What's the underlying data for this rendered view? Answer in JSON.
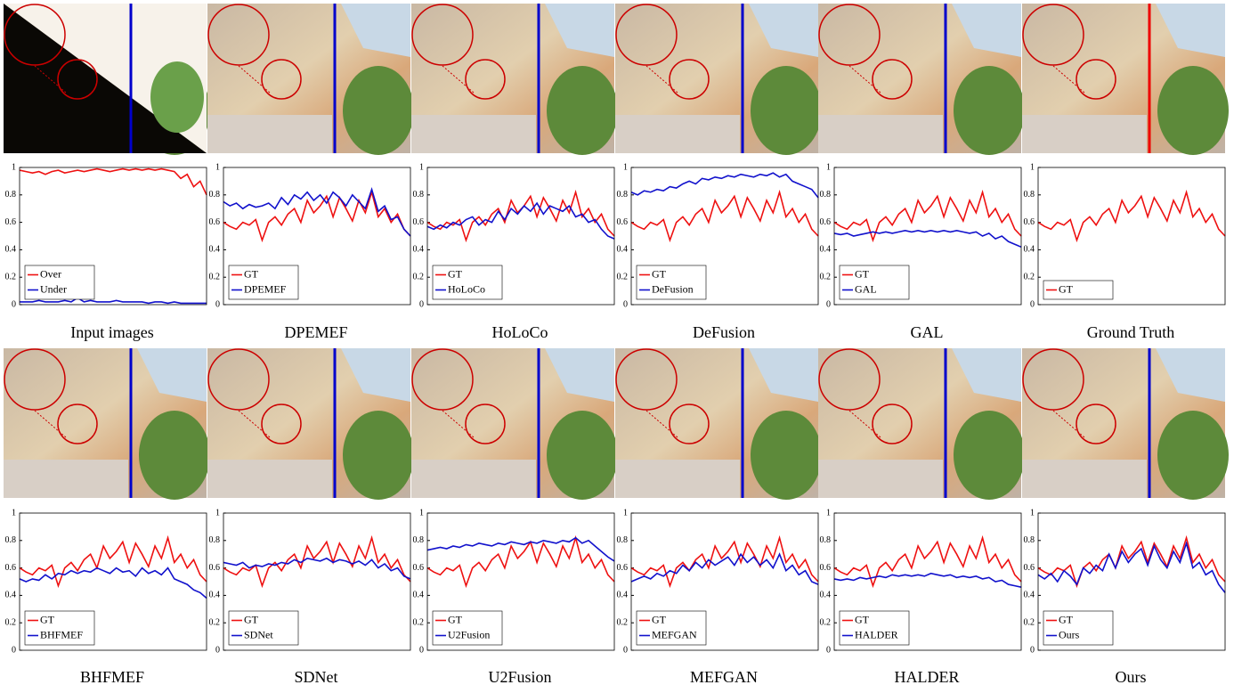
{
  "chart_data": [
    {
      "type": "line",
      "title": "Input images",
      "ylim": [
        0,
        1
      ],
      "yticks": [
        0,
        0.2,
        0.4,
        0.6,
        0.8,
        1
      ],
      "legend": "lower left",
      "series": [
        {
          "name": "Over",
          "color": "#ee1111",
          "values": [
            0.98,
            0.97,
            0.96,
            0.97,
            0.95,
            0.97,
            0.98,
            0.96,
            0.97,
            0.98,
            0.97,
            0.98,
            0.99,
            0.98,
            0.97,
            0.98,
            0.99,
            0.98,
            0.99,
            0.98,
            0.99,
            0.98,
            0.99,
            0.98,
            0.97,
            0.92,
            0.95,
            0.86,
            0.9,
            0.8
          ]
        },
        {
          "name": "Under",
          "color": "#1111cc",
          "values": [
            0.02,
            0.02,
            0.02,
            0.03,
            0.02,
            0.02,
            0.02,
            0.03,
            0.02,
            0.05,
            0.02,
            0.03,
            0.02,
            0.02,
            0.02,
            0.03,
            0.02,
            0.02,
            0.02,
            0.02,
            0.01,
            0.02,
            0.02,
            0.01,
            0.02,
            0.01,
            0.01,
            0.01,
            0.01,
            0.01
          ]
        }
      ]
    },
    {
      "type": "line",
      "title": "DPEMEF",
      "ylim": [
        0,
        1
      ],
      "yticks": [
        0,
        0.2,
        0.4,
        0.6,
        0.8,
        1
      ],
      "legend": "lower left",
      "series": [
        {
          "name": "GT",
          "color": "#ee1111",
          "values": [
            0.6,
            0.57,
            0.55,
            0.6,
            0.58,
            0.62,
            0.47,
            0.6,
            0.64,
            0.58,
            0.66,
            0.7,
            0.6,
            0.76,
            0.67,
            0.72,
            0.79,
            0.64,
            0.78,
            0.7,
            0.61,
            0.76,
            0.67,
            0.82,
            0.64,
            0.7,
            0.6,
            0.66,
            0.55,
            0.5
          ]
        },
        {
          "name": "DPEMEF",
          "color": "#1111cc",
          "values": [
            0.75,
            0.72,
            0.74,
            0.7,
            0.73,
            0.71,
            0.72,
            0.74,
            0.7,
            0.78,
            0.73,
            0.8,
            0.77,
            0.82,
            0.76,
            0.8,
            0.74,
            0.82,
            0.78,
            0.72,
            0.8,
            0.75,
            0.7,
            0.84,
            0.68,
            0.72,
            0.62,
            0.64,
            0.55,
            0.5
          ]
        }
      ]
    },
    {
      "type": "line",
      "title": "HoLoCo",
      "ylim": [
        0,
        1
      ],
      "yticks": [
        0,
        0.2,
        0.4,
        0.6,
        0.8,
        1
      ],
      "legend": "lower left",
      "series": [
        {
          "name": "GT",
          "color": "#ee1111",
          "values": [
            0.6,
            0.57,
            0.55,
            0.6,
            0.58,
            0.62,
            0.47,
            0.6,
            0.64,
            0.58,
            0.66,
            0.7,
            0.6,
            0.76,
            0.67,
            0.72,
            0.79,
            0.64,
            0.78,
            0.7,
            0.61,
            0.76,
            0.67,
            0.82,
            0.64,
            0.7,
            0.6,
            0.66,
            0.55,
            0.5
          ]
        },
        {
          "name": "HoLoCo",
          "color": "#1111cc",
          "values": [
            0.57,
            0.55,
            0.58,
            0.56,
            0.6,
            0.58,
            0.62,
            0.64,
            0.58,
            0.62,
            0.6,
            0.68,
            0.62,
            0.7,
            0.66,
            0.72,
            0.68,
            0.74,
            0.66,
            0.72,
            0.7,
            0.68,
            0.72,
            0.64,
            0.66,
            0.6,
            0.62,
            0.55,
            0.5,
            0.48
          ]
        }
      ]
    },
    {
      "type": "line",
      "title": "DeFusion",
      "ylim": [
        0,
        1
      ],
      "yticks": [
        0,
        0.2,
        0.4,
        0.6,
        0.8,
        1
      ],
      "legend": "lower left",
      "series": [
        {
          "name": "GT",
          "color": "#ee1111",
          "values": [
            0.6,
            0.57,
            0.55,
            0.6,
            0.58,
            0.62,
            0.47,
            0.6,
            0.64,
            0.58,
            0.66,
            0.7,
            0.6,
            0.76,
            0.67,
            0.72,
            0.79,
            0.64,
            0.78,
            0.7,
            0.61,
            0.76,
            0.67,
            0.82,
            0.64,
            0.7,
            0.6,
            0.66,
            0.55,
            0.5
          ]
        },
        {
          "name": "DeFusion",
          "color": "#1111cc",
          "values": [
            0.82,
            0.8,
            0.83,
            0.82,
            0.84,
            0.83,
            0.86,
            0.85,
            0.88,
            0.9,
            0.88,
            0.92,
            0.91,
            0.93,
            0.92,
            0.94,
            0.93,
            0.95,
            0.94,
            0.93,
            0.95,
            0.94,
            0.96,
            0.93,
            0.95,
            0.9,
            0.88,
            0.86,
            0.84,
            0.78
          ]
        }
      ]
    },
    {
      "type": "line",
      "title": "GAL",
      "ylim": [
        0,
        1
      ],
      "yticks": [
        0,
        0.2,
        0.4,
        0.6,
        0.8,
        1
      ],
      "legend": "lower left",
      "series": [
        {
          "name": "GT",
          "color": "#ee1111",
          "values": [
            0.6,
            0.57,
            0.55,
            0.6,
            0.58,
            0.62,
            0.47,
            0.6,
            0.64,
            0.58,
            0.66,
            0.7,
            0.6,
            0.76,
            0.67,
            0.72,
            0.79,
            0.64,
            0.78,
            0.7,
            0.61,
            0.76,
            0.67,
            0.82,
            0.64,
            0.7,
            0.6,
            0.66,
            0.55,
            0.5
          ]
        },
        {
          "name": "GAL",
          "color": "#1111cc",
          "values": [
            0.52,
            0.51,
            0.52,
            0.5,
            0.51,
            0.52,
            0.53,
            0.52,
            0.53,
            0.52,
            0.53,
            0.54,
            0.53,
            0.54,
            0.53,
            0.54,
            0.53,
            0.54,
            0.53,
            0.54,
            0.53,
            0.52,
            0.53,
            0.5,
            0.52,
            0.48,
            0.5,
            0.46,
            0.44,
            0.42
          ]
        }
      ]
    },
    {
      "type": "line",
      "title": "Ground Truth",
      "ylim": [
        0,
        1
      ],
      "yticks": [
        0,
        0.2,
        0.4,
        0.6,
        0.8,
        1
      ],
      "legend": "lower left",
      "series": [
        {
          "name": "GT",
          "color": "#ee1111",
          "values": [
            0.6,
            0.57,
            0.55,
            0.6,
            0.58,
            0.62,
            0.47,
            0.6,
            0.64,
            0.58,
            0.66,
            0.7,
            0.6,
            0.76,
            0.67,
            0.72,
            0.79,
            0.64,
            0.78,
            0.7,
            0.61,
            0.76,
            0.67,
            0.82,
            0.64,
            0.7,
            0.6,
            0.66,
            0.55,
            0.5
          ]
        }
      ]
    },
    {
      "type": "line",
      "title": "BHFMEF",
      "ylim": [
        0,
        1
      ],
      "yticks": [
        0,
        0.2,
        0.4,
        0.6,
        0.8,
        1
      ],
      "legend": "lower left",
      "series": [
        {
          "name": "GT",
          "color": "#ee1111",
          "values": [
            0.6,
            0.57,
            0.55,
            0.6,
            0.58,
            0.62,
            0.47,
            0.6,
            0.64,
            0.58,
            0.66,
            0.7,
            0.6,
            0.76,
            0.67,
            0.72,
            0.79,
            0.64,
            0.78,
            0.7,
            0.61,
            0.76,
            0.67,
            0.82,
            0.64,
            0.7,
            0.6,
            0.66,
            0.55,
            0.5
          ]
        },
        {
          "name": "BHFMEF",
          "color": "#1111cc",
          "values": [
            0.52,
            0.5,
            0.52,
            0.51,
            0.55,
            0.52,
            0.56,
            0.55,
            0.58,
            0.56,
            0.58,
            0.57,
            0.6,
            0.58,
            0.56,
            0.6,
            0.57,
            0.58,
            0.54,
            0.6,
            0.56,
            0.58,
            0.55,
            0.6,
            0.52,
            0.5,
            0.48,
            0.44,
            0.42,
            0.38
          ]
        }
      ]
    },
    {
      "type": "line",
      "title": "SDNet",
      "ylim": [
        0,
        1
      ],
      "yticks": [
        0,
        0.2,
        0.4,
        0.6,
        0.8,
        1
      ],
      "legend": "lower left",
      "series": [
        {
          "name": "GT",
          "color": "#ee1111",
          "values": [
            0.6,
            0.57,
            0.55,
            0.6,
            0.58,
            0.62,
            0.47,
            0.6,
            0.64,
            0.58,
            0.66,
            0.7,
            0.6,
            0.76,
            0.67,
            0.72,
            0.79,
            0.64,
            0.78,
            0.7,
            0.61,
            0.76,
            0.67,
            0.82,
            0.64,
            0.7,
            0.6,
            0.66,
            0.55,
            0.5
          ]
        },
        {
          "name": "SDNet",
          "color": "#1111cc",
          "values": [
            0.64,
            0.63,
            0.62,
            0.64,
            0.6,
            0.62,
            0.61,
            0.63,
            0.62,
            0.64,
            0.63,
            0.66,
            0.64,
            0.67,
            0.66,
            0.65,
            0.67,
            0.64,
            0.66,
            0.65,
            0.63,
            0.65,
            0.62,
            0.66,
            0.6,
            0.63,
            0.58,
            0.6,
            0.54,
            0.52
          ]
        }
      ]
    },
    {
      "type": "line",
      "title": "U2Fusion",
      "ylim": [
        0,
        1
      ],
      "yticks": [
        0,
        0.2,
        0.4,
        0.6,
        0.8,
        1
      ],
      "legend": "lower left",
      "series": [
        {
          "name": "GT",
          "color": "#ee1111",
          "values": [
            0.6,
            0.57,
            0.55,
            0.6,
            0.58,
            0.62,
            0.47,
            0.6,
            0.64,
            0.58,
            0.66,
            0.7,
            0.6,
            0.76,
            0.67,
            0.72,
            0.79,
            0.64,
            0.78,
            0.7,
            0.61,
            0.76,
            0.67,
            0.82,
            0.64,
            0.7,
            0.6,
            0.66,
            0.55,
            0.5
          ]
        },
        {
          "name": "U2Fusion",
          "color": "#1111cc",
          "values": [
            0.73,
            0.74,
            0.75,
            0.74,
            0.76,
            0.75,
            0.77,
            0.76,
            0.78,
            0.77,
            0.76,
            0.78,
            0.77,
            0.79,
            0.78,
            0.77,
            0.79,
            0.78,
            0.8,
            0.79,
            0.78,
            0.8,
            0.79,
            0.82,
            0.78,
            0.8,
            0.76,
            0.72,
            0.68,
            0.65
          ]
        }
      ]
    },
    {
      "type": "line",
      "title": "MEFGAN",
      "ylim": [
        0,
        1
      ],
      "yticks": [
        0,
        0.2,
        0.4,
        0.6,
        0.8,
        1
      ],
      "legend": "lower left",
      "series": [
        {
          "name": "GT",
          "color": "#ee1111",
          "values": [
            0.6,
            0.57,
            0.55,
            0.6,
            0.58,
            0.62,
            0.47,
            0.6,
            0.64,
            0.58,
            0.66,
            0.7,
            0.6,
            0.76,
            0.67,
            0.72,
            0.79,
            0.64,
            0.78,
            0.7,
            0.61,
            0.76,
            0.67,
            0.82,
            0.64,
            0.7,
            0.6,
            0.66,
            0.55,
            0.5
          ]
        },
        {
          "name": "MEFGAN",
          "color": "#1111cc",
          "values": [
            0.5,
            0.52,
            0.54,
            0.52,
            0.56,
            0.54,
            0.58,
            0.56,
            0.62,
            0.58,
            0.64,
            0.6,
            0.66,
            0.62,
            0.65,
            0.68,
            0.62,
            0.7,
            0.64,
            0.68,
            0.62,
            0.66,
            0.6,
            0.7,
            0.58,
            0.62,
            0.55,
            0.58,
            0.5,
            0.48
          ]
        }
      ]
    },
    {
      "type": "line",
      "title": "HALDER",
      "ylim": [
        0,
        1
      ],
      "yticks": [
        0,
        0.2,
        0.4,
        0.6,
        0.8,
        1
      ],
      "legend": "lower left",
      "series": [
        {
          "name": "GT",
          "color": "#ee1111",
          "values": [
            0.6,
            0.57,
            0.55,
            0.6,
            0.58,
            0.62,
            0.47,
            0.6,
            0.64,
            0.58,
            0.66,
            0.7,
            0.6,
            0.76,
            0.67,
            0.72,
            0.79,
            0.64,
            0.78,
            0.7,
            0.61,
            0.76,
            0.67,
            0.82,
            0.64,
            0.7,
            0.6,
            0.66,
            0.55,
            0.5
          ]
        },
        {
          "name": "HALDER",
          "color": "#1111cc",
          "values": [
            0.52,
            0.51,
            0.52,
            0.51,
            0.53,
            0.52,
            0.53,
            0.54,
            0.53,
            0.55,
            0.54,
            0.55,
            0.54,
            0.55,
            0.54,
            0.56,
            0.55,
            0.54,
            0.55,
            0.53,
            0.54,
            0.53,
            0.54,
            0.52,
            0.53,
            0.5,
            0.51,
            0.48,
            0.47,
            0.46
          ]
        }
      ]
    },
    {
      "type": "line",
      "title": "Ours",
      "ylim": [
        0,
        1
      ],
      "yticks": [
        0,
        0.2,
        0.4,
        0.6,
        0.8,
        1
      ],
      "legend": "lower left",
      "series": [
        {
          "name": "GT",
          "color": "#ee1111",
          "values": [
            0.6,
            0.57,
            0.55,
            0.6,
            0.58,
            0.62,
            0.47,
            0.6,
            0.64,
            0.58,
            0.66,
            0.7,
            0.6,
            0.76,
            0.67,
            0.72,
            0.79,
            0.64,
            0.78,
            0.7,
            0.61,
            0.76,
            0.67,
            0.82,
            0.64,
            0.7,
            0.6,
            0.66,
            0.55,
            0.5
          ]
        },
        {
          "name": "Ours",
          "color": "#1111cc",
          "values": [
            0.55,
            0.52,
            0.56,
            0.5,
            0.58,
            0.54,
            0.48,
            0.6,
            0.56,
            0.62,
            0.58,
            0.7,
            0.6,
            0.72,
            0.64,
            0.7,
            0.74,
            0.62,
            0.76,
            0.66,
            0.6,
            0.72,
            0.64,
            0.78,
            0.6,
            0.64,
            0.55,
            0.58,
            0.48,
            0.42
          ]
        }
      ]
    }
  ]
}
